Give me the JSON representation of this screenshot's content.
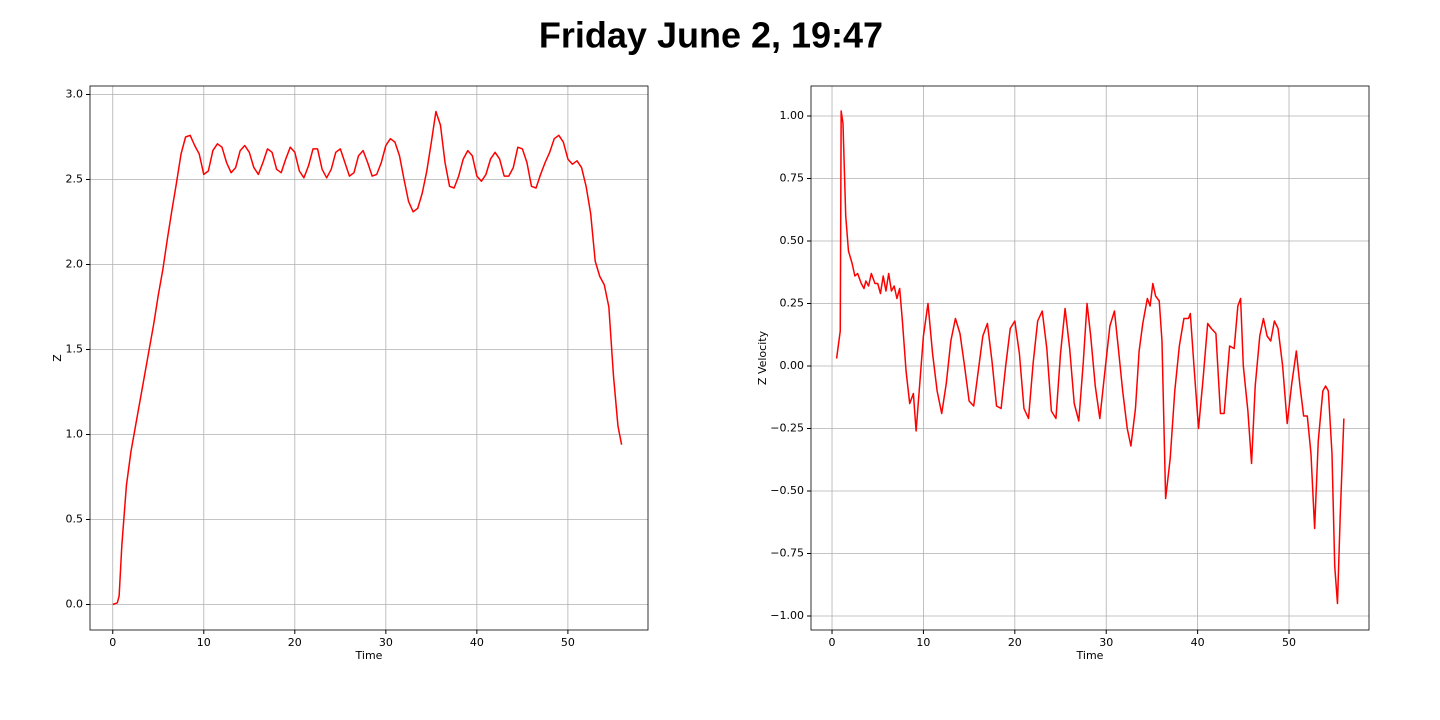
{
  "title": "Friday June 2, 19:47",
  "chart_data": [
    {
      "type": "line",
      "xlabel": "Time",
      "ylabel": "Z",
      "color": "#ff0000",
      "grid": true,
      "xlim": [
        -2.5,
        58.8
      ],
      "ylim": [
        -0.15,
        3.05
      ],
      "xticks": [
        0,
        10,
        20,
        30,
        40,
        50
      ],
      "yticks": [
        {
          "value": 0,
          "label": "0.0"
        },
        0.5,
        {
          "value": 1,
          "label": "1.0"
        },
        1.5,
        {
          "value": 2,
          "label": "2.0"
        },
        2.5,
        {
          "value": 3,
          "label": "3.0"
        }
      ],
      "x": [
        0,
        0.5,
        0.7,
        1,
        1.5,
        2,
        2.5,
        3,
        3.5,
        4,
        4.5,
        5,
        5.5,
        6,
        6.5,
        7,
        7.5,
        8,
        8.5,
        9,
        9.5,
        10,
        10.5,
        11,
        11.5,
        12,
        12.5,
        13,
        13.5,
        14,
        14.5,
        15,
        15.5,
        16,
        16.5,
        17,
        17.5,
        18,
        18.5,
        19,
        19.5,
        20,
        20.5,
        21,
        21.5,
        22,
        22.5,
        23,
        23.5,
        24,
        24.5,
        25,
        25.5,
        26,
        26.5,
        27,
        27.5,
        28,
        28.5,
        29,
        29.5,
        30,
        30.5,
        31,
        31.5,
        32,
        32.5,
        33,
        33.5,
        34,
        34.5,
        35,
        35.5,
        36,
        36.5,
        37,
        37.5,
        38,
        38.5,
        39,
        39.5,
        40,
        40.5,
        41,
        41.5,
        42,
        42.5,
        43,
        43.5,
        44,
        44.5,
        45,
        45.5,
        46,
        46.5,
        47,
        47.5,
        48,
        48.5,
        49,
        49.5,
        50,
        50.5,
        51,
        51.5,
        52,
        52.5,
        53,
        53.5,
        54,
        54.5,
        55,
        55.5,
        55.9
      ],
      "values": [
        0,
        0.01,
        0.05,
        0.35,
        0.7,
        0.9,
        1.05,
        1.2,
        1.35,
        1.5,
        1.65,
        1.82,
        1.97,
        2.15,
        2.32,
        2.48,
        2.65,
        2.75,
        2.76,
        2.7,
        2.65,
        2.53,
        2.55,
        2.67,
        2.71,
        2.69,
        2.6,
        2.54,
        2.57,
        2.67,
        2.7,
        2.66,
        2.57,
        2.53,
        2.6,
        2.68,
        2.66,
        2.56,
        2.54,
        2.62,
        2.69,
        2.66,
        2.55,
        2.51,
        2.58,
        2.68,
        2.68,
        2.56,
        2.51,
        2.56,
        2.66,
        2.68,
        2.6,
        2.52,
        2.54,
        2.64,
        2.67,
        2.6,
        2.52,
        2.53,
        2.6,
        2.7,
        2.74,
        2.72,
        2.64,
        2.5,
        2.37,
        2.31,
        2.33,
        2.42,
        2.55,
        2.72,
        2.9,
        2.82,
        2.6,
        2.46,
        2.45,
        2.52,
        2.62,
        2.67,
        2.64,
        2.52,
        2.49,
        2.53,
        2.62,
        2.66,
        2.62,
        2.52,
        2.52,
        2.57,
        2.69,
        2.68,
        2.6,
        2.46,
        2.45,
        2.53,
        2.6,
        2.66,
        2.74,
        2.76,
        2.72,
        2.62,
        2.59,
        2.61,
        2.57,
        2.46,
        2.3,
        2.02,
        1.93,
        1.88,
        1.75,
        1.35,
        1.05,
        0.94
      ]
    },
    {
      "type": "line",
      "xlabel": "Time",
      "ylabel": "Z Velocity",
      "color": "#ff0000",
      "grid": true,
      "xlim": [
        -2.3,
        58.75
      ],
      "ylim": [
        -1.056,
        1.12
      ],
      "xticks": [
        0,
        10,
        20,
        30,
        40,
        50
      ],
      "yticks": [
        {
          "value": -1,
          "label": "−1.00"
        },
        {
          "value": -0.75,
          "label": "−0.75"
        },
        {
          "value": -0.5,
          "label": "−0.50"
        },
        {
          "value": -0.25,
          "label": "−0.25"
        },
        {
          "value": 0,
          "label": "0.00"
        },
        {
          "value": 0.25,
          "label": "0.25"
        },
        {
          "value": 0.5,
          "label": "0.50"
        },
        {
          "value": 0.75,
          "label": "0.75"
        },
        {
          "value": 1,
          "label": "1.00"
        }
      ],
      "x": [
        0.5,
        0.9,
        1.0,
        1.2,
        1.5,
        1.8,
        2.2,
        2.5,
        2.8,
        3.2,
        3.5,
        3.7,
        4.0,
        4.3,
        4.7,
        5.0,
        5.3,
        5.6,
        5.9,
        6.2,
        6.5,
        6.8,
        7.1,
        7.4,
        7.7,
        8.1,
        8.5,
        8.9,
        9.2,
        9.6,
        10,
        10.5,
        11,
        11.5,
        12,
        12.5,
        13,
        13.5,
        14,
        14.5,
        15,
        15.5,
        16,
        16.5,
        17,
        17.5,
        18,
        18.5,
        19,
        19.5,
        20,
        20.5,
        21,
        21.5,
        22,
        22.5,
        23,
        23.5,
        24,
        24.5,
        25,
        25.5,
        26,
        26.5,
        27,
        27.5,
        27.9,
        28.3,
        28.8,
        29.3,
        29.8,
        30.4,
        30.9,
        31.3,
        31.8,
        32.3,
        32.7,
        33.2,
        33.6,
        34,
        34.5,
        34.8,
        35.1,
        35.4,
        35.8,
        36.1,
        36.5,
        37,
        37.5,
        38,
        38.5,
        39,
        39.2,
        39.6,
        40.1,
        40.6,
        41.1,
        41.5,
        42,
        42.5,
        42.9,
        43.5,
        44,
        44.4,
        44.7,
        45,
        45.5,
        45.9,
        46.3,
        46.8,
        47.2,
        47.6,
        48,
        48.4,
        48.8,
        49.3,
        49.8,
        50.3,
        50.8,
        51.2,
        51.6,
        52,
        52.4,
        52.8,
        53.2,
        53.7,
        54,
        54.3,
        54.7,
        55.0,
        55.3,
        55.6,
        56
      ],
      "values": [
        0.03,
        0.14,
        1.02,
        0.97,
        0.6,
        0.46,
        0.41,
        0.36,
        0.37,
        0.33,
        0.31,
        0.34,
        0.32,
        0.37,
        0.33,
        0.33,
        0.29,
        0.36,
        0.3,
        0.37,
        0.3,
        0.32,
        0.27,
        0.31,
        0.18,
        -0.02,
        -0.15,
        -0.11,
        -0.26,
        -0.07,
        0.12,
        0.25,
        0.05,
        -0.1,
        -0.19,
        -0.07,
        0.1,
        0.19,
        0.13,
        0.0,
        -0.14,
        -0.16,
        -0.02,
        0.12,
        0.17,
        0.02,
        -0.16,
        -0.17,
        0.0,
        0.15,
        0.18,
        0.05,
        -0.17,
        -0.21,
        0.01,
        0.18,
        0.22,
        0.07,
        -0.18,
        -0.21,
        0.05,
        0.23,
        0.07,
        -0.15,
        -0.22,
        0.02,
        0.25,
        0.12,
        -0.08,
        -0.21,
        -0.04,
        0.16,
        0.22,
        0.08,
        -0.1,
        -0.25,
        -0.32,
        -0.17,
        0.06,
        0.17,
        0.27,
        0.24,
        0.33,
        0.28,
        0.26,
        0.1,
        -0.53,
        -0.37,
        -0.1,
        0.08,
        0.19,
        0.19,
        0.21,
        0.0,
        -0.25,
        -0.05,
        0.17,
        0.15,
        0.13,
        -0.19,
        -0.19,
        0.08,
        0.07,
        0.24,
        0.27,
        0.0,
        -0.18,
        -0.39,
        -0.08,
        0.12,
        0.19,
        0.12,
        0.1,
        0.18,
        0.15,
        0.0,
        -0.23,
        -0.07,
        0.06,
        -0.08,
        -0.2,
        -0.2,
        -0.35,
        -0.65,
        -0.3,
        -0.1,
        -0.08,
        -0.1,
        -0.35,
        -0.8,
        -0.95,
        -0.6,
        -0.21
      ]
    }
  ]
}
